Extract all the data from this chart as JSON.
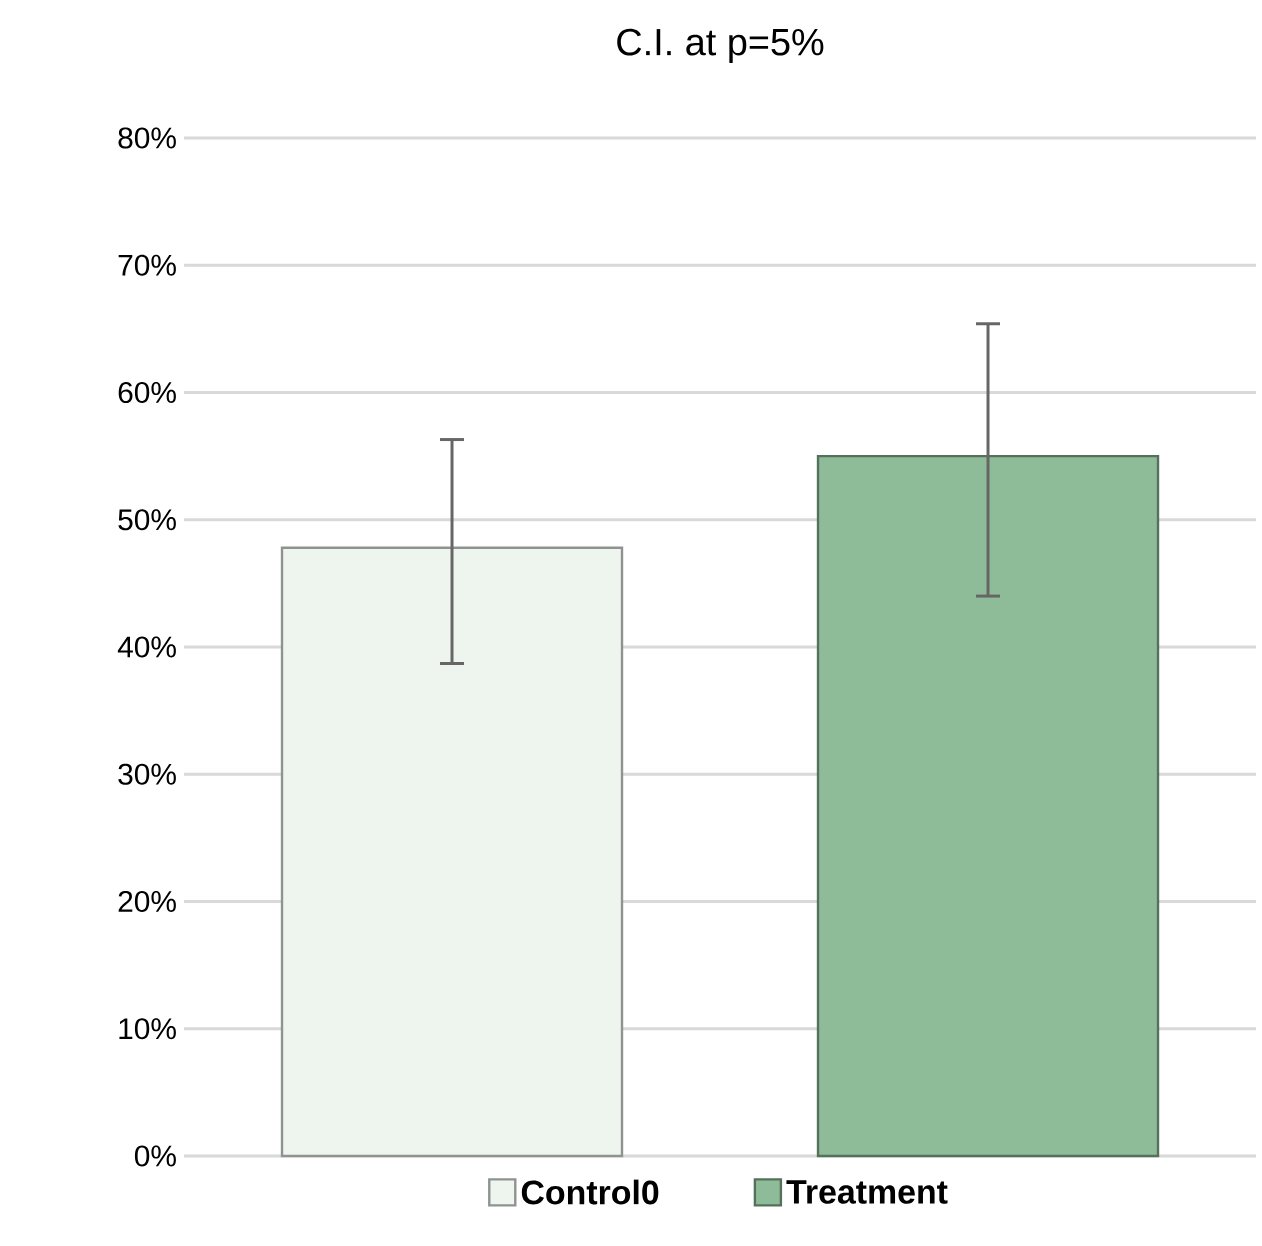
{
  "chart_data": {
    "type": "bar",
    "title": "C.I. at p=5%",
    "categories": [
      null,
      null
    ],
    "series": [
      {
        "name": "Control0",
        "color": "#eef5ef",
        "values": [
          47.8,
          null
        ],
        "errors": [
          [
            38.7,
            56.3
          ],
          null
        ]
      },
      {
        "name": "Treatment",
        "color": "#8fbc98",
        "values": [
          null,
          55.0
        ],
        "errors": [
          null,
          [
            44.0,
            65.4
          ]
        ]
      }
    ],
    "ylim": [
      0,
      80
    ],
    "yticks": [
      {
        "value": 0,
        "label": "0%"
      },
      {
        "value": 10,
        "label": "10%"
      },
      {
        "value": 20,
        "label": "20%"
      },
      {
        "value": 30,
        "label": "30%"
      },
      {
        "value": 40,
        "label": "40%"
      },
      {
        "value": 50,
        "label": "50%"
      },
      {
        "value": 60,
        "label": "60%"
      },
      {
        "value": 70,
        "label": "70%"
      },
      {
        "value": 80,
        "label": "80%"
      }
    ],
    "grid": "y",
    "legend": "bottom"
  }
}
